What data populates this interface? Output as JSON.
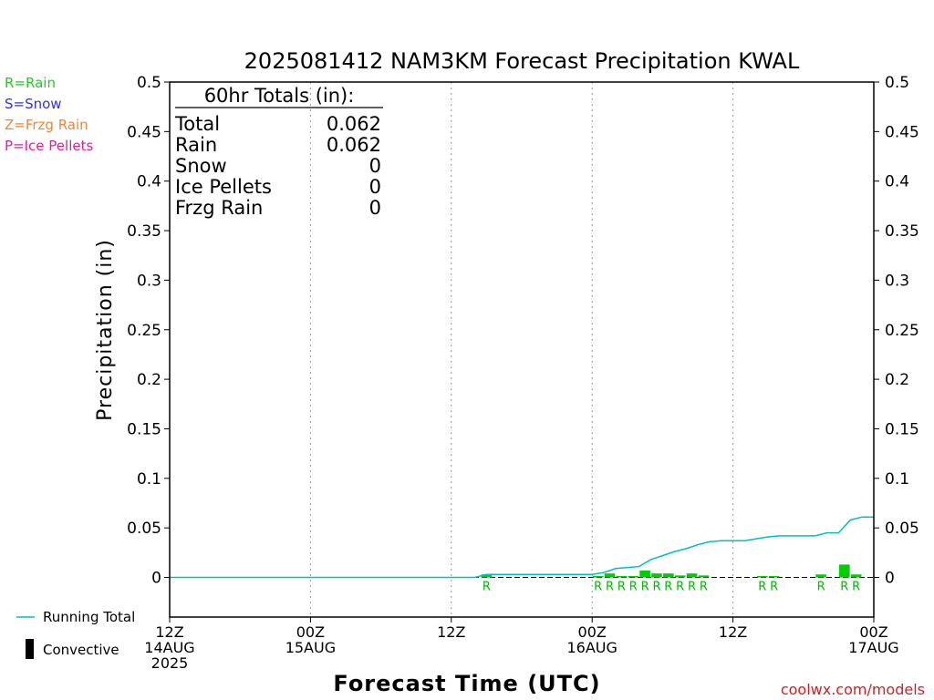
{
  "chart_data": {
    "type": "bar",
    "title": "2025081412 NAM3KM Forecast Precipitation KWAL",
    "ylabel": "Precipitation (in)",
    "xlabel": "Forecast Time (UTC)",
    "ylim": [
      -0.04,
      0.5
    ],
    "yticks": [
      0,
      0.05,
      0.1,
      0.15,
      0.2,
      0.25,
      0.3,
      0.35,
      0.4,
      0.45,
      0.5
    ],
    "ytick_labels": [
      "0",
      "0.05",
      "0.1",
      "0.15",
      "0.2",
      "0.25",
      "0.3",
      "0.35",
      "0.4",
      "0.45",
      "0.5"
    ],
    "xlim": [
      0,
      60
    ],
    "xticks": [
      {
        "hour": 0,
        "lines": [
          "12Z",
          "14AUG",
          "2025"
        ]
      },
      {
        "hour": 12,
        "lines": [
          "00Z",
          "15AUG"
        ]
      },
      {
        "hour": 24,
        "lines": [
          "12Z"
        ]
      },
      {
        "hour": 36,
        "lines": [
          "00Z",
          "16AUG"
        ]
      },
      {
        "hour": 48,
        "lines": [
          "12Z"
        ]
      },
      {
        "hour": 60,
        "lines": [
          "00Z",
          "17AUG"
        ]
      }
    ],
    "grid_hours": [
      12,
      24,
      36,
      48
    ],
    "bars": [
      {
        "hour": 27,
        "value": 0.003,
        "type": "R"
      },
      {
        "hour": 36.5,
        "value": 0.001,
        "type": "R"
      },
      {
        "hour": 37.5,
        "value": 0.004,
        "type": "R"
      },
      {
        "hour": 38.5,
        "value": 0.001,
        "type": "R"
      },
      {
        "hour": 39.5,
        "value": 0.001,
        "type": "R"
      },
      {
        "hour": 40.5,
        "value": 0.007,
        "type": "R"
      },
      {
        "hour": 41.5,
        "value": 0.004,
        "type": "R"
      },
      {
        "hour": 42.5,
        "value": 0.004,
        "type": "R"
      },
      {
        "hour": 43.5,
        "value": 0.002,
        "type": "R"
      },
      {
        "hour": 44.5,
        "value": 0.004,
        "type": "R"
      },
      {
        "hour": 45.5,
        "value": 0.002,
        "type": "R"
      },
      {
        "hour": 50.5,
        "value": 0.001,
        "type": "R"
      },
      {
        "hour": 51.5,
        "value": 0.001,
        "type": "R"
      },
      {
        "hour": 55.5,
        "value": 0.003,
        "type": "R"
      },
      {
        "hour": 57.5,
        "value": 0.013,
        "type": "R"
      },
      {
        "hour": 58.5,
        "value": 0.003,
        "type": "R"
      }
    ],
    "running_total": {
      "name": "Running Total",
      "points": [
        [
          0,
          0
        ],
        [
          26,
          0
        ],
        [
          27,
          0.003
        ],
        [
          36,
          0.003
        ],
        [
          37,
          0.005
        ],
        [
          38,
          0.009
        ],
        [
          39,
          0.01
        ],
        [
          40,
          0.011
        ],
        [
          41,
          0.018
        ],
        [
          42,
          0.022
        ],
        [
          43,
          0.026
        ],
        [
          44,
          0.029
        ],
        [
          45,
          0.033
        ],
        [
          46,
          0.036
        ],
        [
          47,
          0.037
        ],
        [
          48,
          0.037
        ],
        [
          49,
          0.037
        ],
        [
          50,
          0.039
        ],
        [
          51,
          0.041
        ],
        [
          52,
          0.042
        ],
        [
          54,
          0.042
        ],
        [
          55,
          0.042
        ],
        [
          56,
          0.045
        ],
        [
          57,
          0.045
        ],
        [
          58,
          0.058
        ],
        [
          59,
          0.061
        ],
        [
          60,
          0.061
        ]
      ]
    },
    "totals": {
      "header": "60hr Totals (in):",
      "rows": [
        {
          "label": "Total",
          "value": "0.062"
        },
        {
          "label": "Rain",
          "value": "0.062"
        },
        {
          "label": "Snow",
          "value": "0"
        },
        {
          "label": "Ice Pellets",
          "value": "0"
        },
        {
          "label": "Frzg Rain",
          "value": "0"
        }
      ]
    },
    "type_legend": [
      {
        "label": "R=Rain",
        "color": "#22cc22"
      },
      {
        "label": "S=Snow",
        "color": "#3333dd"
      },
      {
        "label": "Z=Frzg Rain",
        "color": "#ee8833"
      },
      {
        "label": "P=Ice Pellets",
        "color": "#dd2299"
      }
    ],
    "bottom_legend": [
      {
        "label": "Running Total",
        "kind": "line",
        "color": "#00c0c0"
      },
      {
        "label": "Convective",
        "kind": "box",
        "color": "#000000"
      }
    ],
    "colors": {
      "rain_bar": "#00cc00",
      "running_total": "#00c0c0",
      "zero_line": "#000000",
      "grid": "#999999"
    }
  },
  "footer": "coolwx.com/models"
}
